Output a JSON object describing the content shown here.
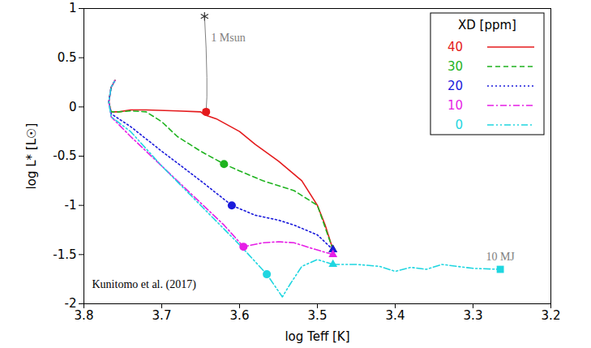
{
  "chart_data": {
    "type": "line",
    "x_label": "log Teff [K]",
    "y_label": "log L* [L☉]",
    "xlim": [
      3.8,
      3.2
    ],
    "xticks": [
      3.8,
      3.7,
      3.6,
      3.5,
      3.4,
      3.3,
      3.2
    ],
    "ylim": [
      -2,
      1
    ],
    "yticks": [
      -2,
      -1.5,
      -1,
      -0.5,
      0,
      0.5,
      1
    ],
    "legend": "top-right",
    "legend_title": "XD [ppm]",
    "series": [
      {
        "name": "40",
        "color": "#e41a1c",
        "line_style": "solid",
        "x": [
          3.48,
          3.49,
          3.5,
          3.52,
          3.55,
          3.58,
          3.6,
          3.63,
          3.645,
          3.65,
          3.68,
          3.72,
          3.74,
          3.755,
          3.765,
          3.768,
          3.765,
          3.76
        ],
        "y": [
          -1.45,
          -1.2,
          -1.0,
          -0.75,
          -0.55,
          -0.38,
          -0.25,
          -0.12,
          -0.08,
          -0.05,
          -0.04,
          -0.03,
          -0.03,
          -0.05,
          -0.05,
          0.05,
          0.2,
          0.27
        ],
        "circle": {
          "x": 3.643,
          "y": -0.05
        },
        "triangle": {
          "x": 3.48,
          "y": -1.45
        }
      },
      {
        "name": "30",
        "color": "#1fb31f",
        "line_style": "dashed",
        "x": [
          3.48,
          3.5,
          3.53,
          3.57,
          3.6,
          3.62,
          3.65,
          3.68,
          3.7,
          3.72,
          3.74,
          3.755,
          3.765,
          3.768,
          3.765,
          3.76
        ],
        "y": [
          -1.45,
          -1.0,
          -0.85,
          -0.75,
          -0.65,
          -0.58,
          -0.45,
          -0.3,
          -0.15,
          -0.05,
          -0.04,
          -0.05,
          -0.05,
          0.05,
          0.2,
          0.27
        ],
        "circle": {
          "x": 3.62,
          "y": -0.58
        },
        "triangle": {
          "x": 3.48,
          "y": -1.45
        }
      },
      {
        "name": "20",
        "color": "#1a1adb",
        "line_style": "dotted",
        "x": [
          3.48,
          3.5,
          3.53,
          3.55,
          3.58,
          3.61,
          3.65,
          3.7,
          3.74,
          3.765,
          3.768,
          3.765,
          3.76
        ],
        "y": [
          -1.45,
          -1.3,
          -1.2,
          -1.15,
          -1.1,
          -1.0,
          -0.75,
          -0.45,
          -0.2,
          -0.07,
          0.05,
          0.2,
          0.27
        ],
        "circle": {
          "x": 3.61,
          "y": -1.0
        },
        "triangle": {
          "x": 3.48,
          "y": -1.45
        }
      },
      {
        "name": "10",
        "color": "#e61ee6",
        "line_style": "dashdot",
        "x": [
          3.48,
          3.51,
          3.53,
          3.55,
          3.57,
          3.595,
          3.62,
          3.66,
          3.7,
          3.74,
          3.765,
          3.768,
          3.765,
          3.76
        ],
        "y": [
          -1.5,
          -1.43,
          -1.38,
          -1.37,
          -1.38,
          -1.42,
          -1.2,
          -0.9,
          -0.6,
          -0.3,
          -0.1,
          0.05,
          0.2,
          0.27
        ],
        "circle": {
          "x": 3.595,
          "y": -1.42
        },
        "triangle": {
          "x": 3.48,
          "y": -1.5
        }
      },
      {
        "name": "0",
        "color": "#1fd6e0",
        "line_style": "dashdotdot",
        "x": [
          3.48,
          3.5,
          3.52,
          3.535,
          3.545,
          3.565,
          3.6,
          3.65,
          3.7,
          3.74,
          3.765,
          3.768,
          3.765,
          3.76
        ],
        "y": [
          -1.6,
          -1.55,
          -1.62,
          -1.8,
          -1.93,
          -1.7,
          -1.4,
          -1.0,
          -0.6,
          -0.25,
          -0.1,
          0.05,
          0.2,
          0.27
        ],
        "circle": {
          "x": 3.565,
          "y": -1.7
        },
        "triangle": {
          "x": 3.48,
          "y": -1.6
        }
      }
    ],
    "common_track": {
      "color": "#1fd6e0",
      "line_style": "dashdotdot",
      "x": [
        3.48,
        3.45,
        3.42,
        3.4,
        3.38,
        3.36,
        3.34,
        3.32,
        3.3,
        3.265
      ],
      "y": [
        -1.6,
        -1.6,
        -1.62,
        -1.67,
        -1.63,
        -1.65,
        -1.6,
        -1.62,
        -1.64,
        -1.65
      ]
    },
    "track": {
      "label": "1 Msun",
      "color": "#808080",
      "marker": "star",
      "x": [
        3.645,
        3.643,
        3.642,
        3.642,
        3.643
      ],
      "y": [
        0.92,
        0.6,
        0.3,
        0.1,
        -0.05
      ]
    },
    "end_point": {
      "label": "10 MJ",
      "color": "#1fd6e0",
      "marker": "square",
      "x": 3.265,
      "y": -1.65
    },
    "credit": "Kunitomo et al. (2017)"
  }
}
